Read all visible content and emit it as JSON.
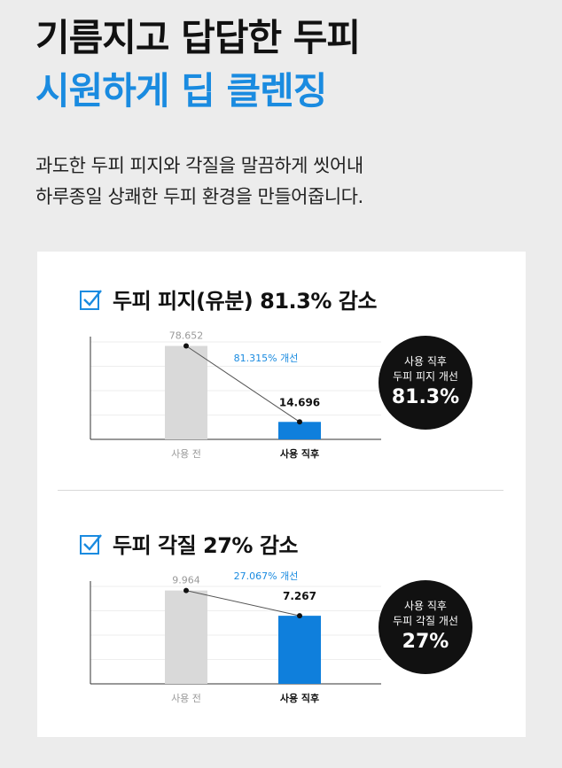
{
  "header": {
    "title_line1": "기름지고 답답한 두피",
    "title_line2": "시원하게 딥 클렌징",
    "desc_line1": "과도한 두피 피지와 각질을 말끔하게 씻어내",
    "desc_line2": "하루종일 상쾌한 두피 환경을 만들어줍니다."
  },
  "colors": {
    "accent": "#1a8be0",
    "bar_before": "#d9d9d9",
    "bar_after": "#0f7fdc"
  },
  "sections": [
    {
      "heading": "두피 피지(유분) 81.3% 감소",
      "badge": {
        "line1": "사용 직후",
        "line2": "두피 피지 개선",
        "value": "81.3%"
      }
    },
    {
      "heading": "두피 각질 27% 감소",
      "badge": {
        "line1": "사용 직후",
        "line2": "두피 각질 개선",
        "value": "27%"
      }
    }
  ],
  "chart_data": [
    {
      "type": "bar",
      "categories": [
        "사용 전",
        "사용 직후"
      ],
      "values": [
        78.652,
        14.696
      ],
      "value_labels": [
        "78.652",
        "14.696"
      ],
      "annotation": "81.315% 개선",
      "ylim": [
        0,
        82
      ]
    },
    {
      "type": "bar",
      "categories": [
        "사용 전",
        "사용 직후"
      ],
      "values": [
        9.964,
        7.267
      ],
      "value_labels": [
        "9.964",
        "7.267"
      ],
      "annotation": "27.067% 개선",
      "ylim": [
        0,
        10.4
      ]
    }
  ]
}
